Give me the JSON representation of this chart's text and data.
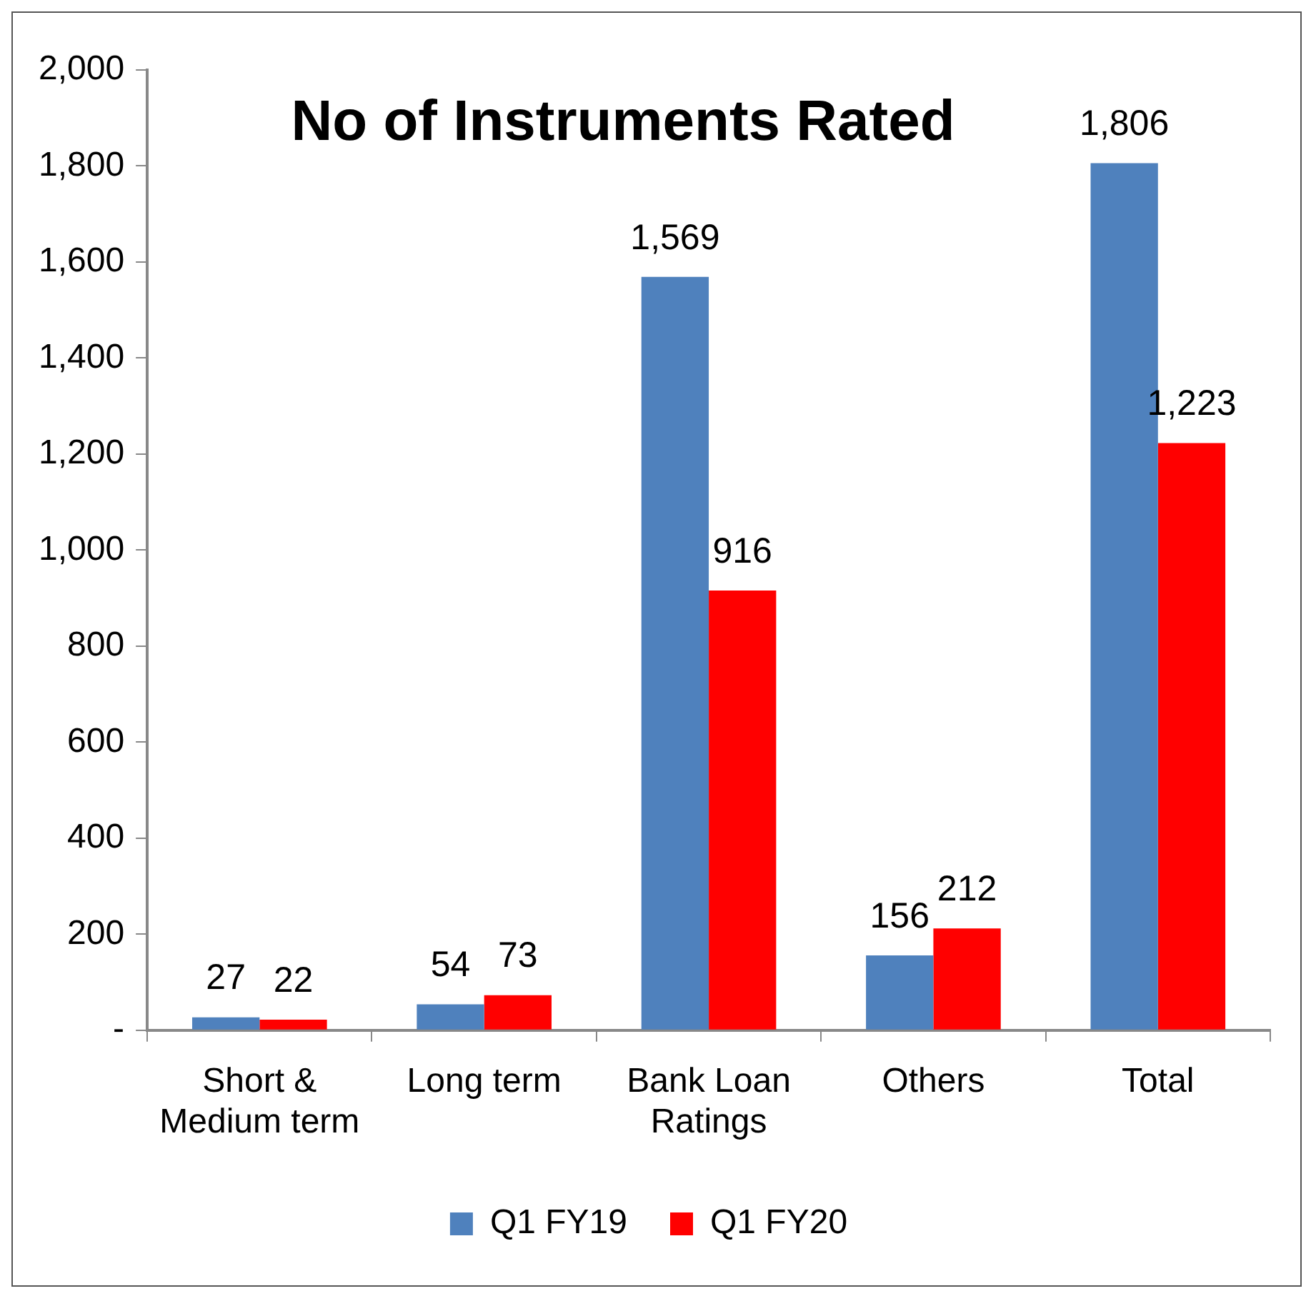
{
  "chart_data": {
    "type": "bar",
    "title": "No of Instruments Rated",
    "categories": [
      "Short & Medium term",
      "Long term",
      "Bank Loan Ratings",
      "Others",
      "Total"
    ],
    "series": [
      {
        "name": "Q1 FY19",
        "color": "#4f81bd",
        "values": [
          27,
          54,
          1569,
          156,
          1806
        ],
        "value_labels": [
          "27",
          "54",
          "1,569",
          "156",
          "1,806"
        ]
      },
      {
        "name": "Q1 FY20",
        "color": "#ff0000",
        "values": [
          22,
          73,
          916,
          212,
          1223
        ],
        "value_labels": [
          "22",
          "73",
          "916",
          "212",
          "1,223"
        ]
      }
    ],
    "ylim": [
      0,
      2000
    ],
    "yticks": [
      {
        "value": 0,
        "label": "-"
      },
      200,
      400,
      600,
      800,
      {
        "value": 1000,
        "label": "1,000"
      },
      {
        "value": 1200,
        "label": "1,200"
      },
      {
        "value": 1400,
        "label": "1,400"
      },
      {
        "value": 1600,
        "label": "1,600"
      },
      {
        "value": 1800,
        "label": "1,800"
      },
      {
        "value": 2000,
        "label": "2,000"
      }
    ],
    "grid": false,
    "legend": "bottom"
  }
}
